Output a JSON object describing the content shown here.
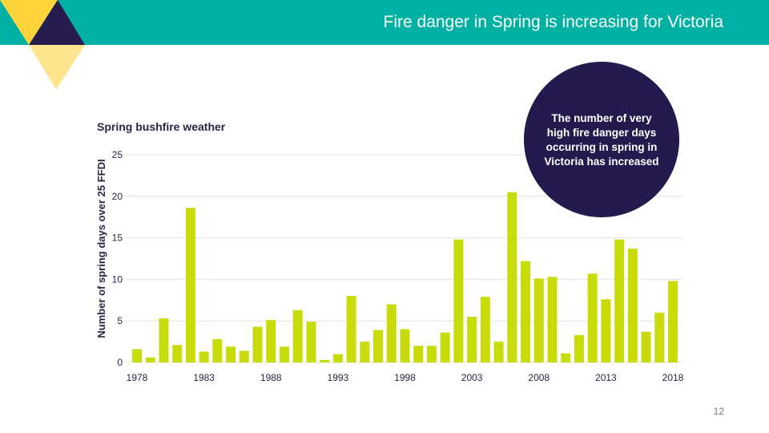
{
  "slide": {
    "title": "Fire danger in Spring is increasing for Victoria",
    "page_number": "12"
  },
  "colors": {
    "header_bg": "#00b0a2",
    "bar": "#c8dc0a",
    "callout_bg": "#241a4d",
    "deco_yellow": "#fdd53a",
    "deco_navy": "#261c4e",
    "deco_pale_yellow": "#fde58f"
  },
  "callout": {
    "lines": [
      "The number of very",
      "high fire danger days",
      "occurring in spring in",
      "Victoria has increased"
    ]
  },
  "chart_data": {
    "type": "bar",
    "title": "Spring bushfire weather",
    "ylabel": "Number of spring days over 25 FFDI",
    "xlabel": "",
    "ylim": [
      0,
      25
    ],
    "yticks": [
      "0",
      "5",
      "10",
      "15",
      "20",
      "25"
    ],
    "xtick_labels": [
      "1978",
      "1983",
      "1988",
      "1993",
      "1998",
      "2003",
      "2008",
      "2013",
      "2018"
    ],
    "grid": true,
    "categories": [
      1978,
      1979,
      1980,
      1981,
      1982,
      1983,
      1984,
      1985,
      1986,
      1987,
      1988,
      1989,
      1990,
      1991,
      1992,
      1993,
      1994,
      1995,
      1996,
      1997,
      1998,
      1999,
      2000,
      2001,
      2002,
      2003,
      2004,
      2005,
      2006,
      2007,
      2008,
      2009,
      2010,
      2011,
      2012,
      2013,
      2014,
      2015,
      2016,
      2017,
      2018
    ],
    "values": [
      1.6,
      0.6,
      5.3,
      2.1,
      18.6,
      1.3,
      2.8,
      1.9,
      1.4,
      4.3,
      5.1,
      1.9,
      6.3,
      4.9,
      0.3,
      1.0,
      8.0,
      2.5,
      3.9,
      7.0,
      4.0,
      2.0,
      2.0,
      3.6,
      14.8,
      5.5,
      7.9,
      2.5,
      20.5,
      12.2,
      10.1,
      10.3,
      1.1,
      3.3,
      10.7,
      7.6,
      14.8,
      13.7,
      3.7,
      6.0,
      9.8
    ]
  }
}
